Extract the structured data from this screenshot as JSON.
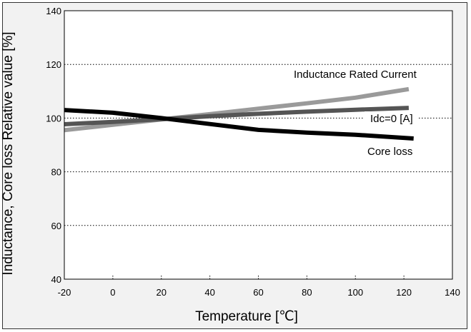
{
  "chart_data": {
    "type": "line",
    "title": "",
    "xlabel": "Temperature [℃]",
    "ylabel": "Inductance, Core loss Relative value [%]",
    "xlim": [
      -20,
      140
    ],
    "ylim": [
      40,
      140
    ],
    "xticks": [
      -20,
      0,
      20,
      40,
      60,
      80,
      100,
      120,
      140
    ],
    "yticks": [
      40,
      60,
      80,
      100,
      120,
      140
    ],
    "grid": "horizontal-dotted",
    "legend": "none",
    "series": [
      {
        "name": "Inductance Rated Current",
        "color": "#9a9a9a",
        "x": [
          -20,
          0,
          20,
          40,
          60,
          80,
          100,
          122
        ],
        "y": [
          95.5,
          97.5,
          99.5,
          101.5,
          103.5,
          105.5,
          107.6,
          110.8
        ]
      },
      {
        "name": "Idc=0 [A]",
        "color": "#555555",
        "x": [
          -20,
          0,
          20,
          40,
          60,
          80,
          100,
          122
        ],
        "y": [
          97.7,
          98.6,
          99.6,
          100.7,
          101.6,
          102.4,
          103.1,
          103.8
        ]
      },
      {
        "name": "Core loss",
        "color": "#000000",
        "x": [
          -20,
          0,
          20,
          40,
          60,
          80,
          100,
          124
        ],
        "y": [
          103.0,
          102.0,
          100.0,
          97.8,
          95.6,
          94.6,
          93.8,
          92.4
        ]
      }
    ],
    "annotations": [
      {
        "text": "Inductance Rated Current"
      },
      {
        "text": "Idc=0 [A]"
      },
      {
        "text": "Core loss"
      }
    ]
  }
}
